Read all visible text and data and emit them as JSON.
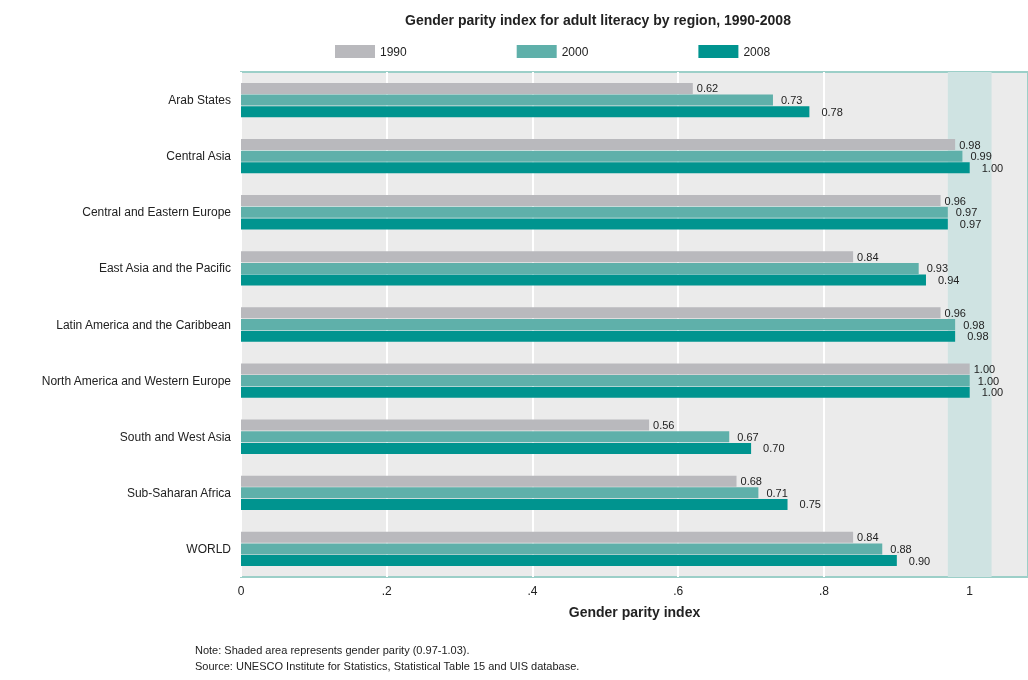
{
  "chart_data": {
    "type": "bar",
    "orientation": "horizontal",
    "title": "Gender parity index for adult literacy by region, 1990-2008",
    "xlabel": "Gender parity index",
    "categories": [
      "Arab States",
      "Central Asia",
      "Central and Eastern Europe",
      "East Asia and the Pacific",
      "Latin America and the Caribbean",
      "North America and Western Europe",
      "South and West Asia",
      "Sub-Saharan Africa",
      "WORLD"
    ],
    "series": [
      {
        "name": "1990",
        "color": "#b9b9bd",
        "values": [
          0.62,
          0.98,
          0.96,
          0.84,
          0.96,
          1.0,
          0.56,
          0.68,
          0.84
        ],
        "value_labels": [
          "0.62",
          "0.98",
          "0.96",
          "0.84",
          "0.96",
          "1.00",
          "0.56",
          "0.68",
          "0.84"
        ]
      },
      {
        "name": "2000",
        "color": "#5fb0aa",
        "values": [
          0.73,
          0.99,
          0.97,
          0.93,
          0.98,
          1.0,
          0.67,
          0.71,
          0.88
        ],
        "value_labels": [
          "0.73",
          "0.99",
          "0.97",
          "0.93",
          "0.98",
          "1.00",
          "0.67",
          "0.71",
          "0.88"
        ]
      },
      {
        "name": "2008",
        "color": "#00948f",
        "values": [
          0.78,
          1.0,
          0.97,
          0.94,
          0.98,
          1.0,
          0.7,
          0.75,
          0.9
        ],
        "value_labels": [
          "0.78",
          "1.00",
          "0.97",
          "0.94",
          "0.98",
          "1.00",
          "0.70",
          "0.75",
          "0.90"
        ]
      }
    ],
    "xlim": [
      0,
      1.08
    ],
    "xticks": [
      0,
      {
        "value": 0.2,
        "label": ".2"
      },
      {
        "value": 0.4,
        "label": ".4"
      },
      {
        "value": 0.6,
        "label": ".6"
      },
      {
        "value": 0.8,
        "label": ".8"
      },
      1
    ],
    "bands": [
      {
        "axis": "x",
        "from": 0.97,
        "to": 1.03,
        "color": "#cfe3e2"
      }
    ],
    "grid": "x",
    "legend": "top",
    "annotations": [
      "Note: Shaded area represents gender parity (0.97-1.03).",
      "Source: UNESCO Institute for Statistics, Statistical Table 15 and UIS database."
    ]
  }
}
